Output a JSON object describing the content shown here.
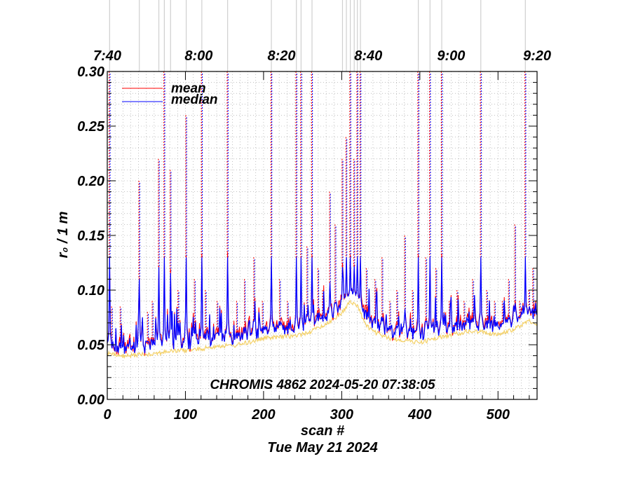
{
  "chart_data": {
    "type": "line",
    "xlabel": "scan #",
    "ylabel": "r₀ / 1 m",
    "date_label": "Tue May 21 2024",
    "annotation": "CHROMIS 4862 2024-05-20 07:38:05",
    "xlim": [
      0,
      550
    ],
    "ylim": [
      0.0,
      0.3
    ],
    "x_ticks": [
      0,
      100,
      200,
      300,
      400,
      500
    ],
    "x_tick_labels": [
      "0",
      "100",
      "200",
      "300",
      "400",
      "500"
    ],
    "y_ticks": [
      0.0,
      0.05,
      0.1,
      0.15,
      0.2,
      0.25,
      0.3
    ],
    "y_tick_labels": [
      "0.00",
      "0.05",
      "0.10",
      "0.15",
      "0.20",
      "0.25",
      "0.30"
    ],
    "time_ticks": [
      {
        "label": "7:40",
        "scan": 0
      },
      {
        "label": "8:00",
        "scan": 117
      },
      {
        "label": "8:20",
        "scan": 223
      },
      {
        "label": "8:40",
        "scan": 334
      },
      {
        "label": "9:00",
        "scan": 440
      },
      {
        "label": "9:20",
        "scan": 550
      }
    ],
    "grid": true,
    "legend_position": "top-left",
    "series": [
      {
        "name": "mean",
        "color": "#ff0000"
      },
      {
        "name": "median",
        "color": "#0000ff"
      }
    ],
    "baseline": [
      [
        0,
        0.048
      ],
      [
        20,
        0.045
      ],
      [
        40,
        0.047
      ],
      [
        60,
        0.048
      ],
      [
        80,
        0.05
      ],
      [
        100,
        0.051
      ],
      [
        120,
        0.052
      ],
      [
        140,
        0.055
      ],
      [
        160,
        0.055
      ],
      [
        180,
        0.058
      ],
      [
        200,
        0.062
      ],
      [
        220,
        0.063
      ],
      [
        240,
        0.064
      ],
      [
        260,
        0.068
      ],
      [
        280,
        0.075
      ],
      [
        300,
        0.085
      ],
      [
        310,
        0.095
      ],
      [
        320,
        0.092
      ],
      [
        330,
        0.075
      ],
      [
        340,
        0.068
      ],
      [
        360,
        0.062
      ],
      [
        380,
        0.06
      ],
      [
        400,
        0.058
      ],
      [
        420,
        0.062
      ],
      [
        440,
        0.065
      ],
      [
        460,
        0.068
      ],
      [
        480,
        0.068
      ],
      [
        500,
        0.065
      ],
      [
        520,
        0.07
      ],
      [
        540,
        0.078
      ],
      [
        550,
        0.075
      ]
    ],
    "peaks": [
      {
        "scan": 3,
        "value": 0.3
      },
      {
        "scan": 6,
        "value": 0.085
      },
      {
        "scan": 17,
        "value": 0.085
      },
      {
        "scan": 41,
        "value": 0.2
      },
      {
        "scan": 52,
        "value": 0.08
      },
      {
        "scan": 58,
        "value": 0.09
      },
      {
        "scan": 66,
        "value": 0.22
      },
      {
        "scan": 73,
        "value": 0.3
      },
      {
        "scan": 81,
        "value": 0.21
      },
      {
        "scan": 91,
        "value": 0.1
      },
      {
        "scan": 101,
        "value": 0.26
      },
      {
        "scan": 112,
        "value": 0.11
      },
      {
        "scan": 121,
        "value": 0.3
      },
      {
        "scan": 126,
        "value": 0.1
      },
      {
        "scan": 141,
        "value": 0.09
      },
      {
        "scan": 154,
        "value": 0.3
      },
      {
        "scan": 166,
        "value": 0.09
      },
      {
        "scan": 176,
        "value": 0.11
      },
      {
        "scan": 188,
        "value": 0.13
      },
      {
        "scan": 199,
        "value": 0.09
      },
      {
        "scan": 210,
        "value": 0.3
      },
      {
        "scan": 221,
        "value": 0.11
      },
      {
        "scan": 231,
        "value": 0.09
      },
      {
        "scan": 242,
        "value": 0.3
      },
      {
        "scan": 248,
        "value": 0.3
      },
      {
        "scan": 256,
        "value": 0.14
      },
      {
        "scan": 262,
        "value": 0.3
      },
      {
        "scan": 270,
        "value": 0.12
      },
      {
        "scan": 276,
        "value": 0.1
      },
      {
        "scan": 285,
        "value": 0.19
      },
      {
        "scan": 292,
        "value": 0.16
      },
      {
        "scan": 301,
        "value": 0.22
      },
      {
        "scan": 306,
        "value": 0.24
      },
      {
        "scan": 311,
        "value": 0.3
      },
      {
        "scan": 316,
        "value": 0.22
      },
      {
        "scan": 320,
        "value": 0.3
      },
      {
        "scan": 324,
        "value": 0.3
      },
      {
        "scan": 332,
        "value": 0.12
      },
      {
        "scan": 343,
        "value": 0.11
      },
      {
        "scan": 352,
        "value": 0.13
      },
      {
        "scan": 362,
        "value": 0.09
      },
      {
        "scan": 371,
        "value": 0.1
      },
      {
        "scan": 381,
        "value": 0.15
      },
      {
        "scan": 391,
        "value": 0.1
      },
      {
        "scan": 398,
        "value": 0.3
      },
      {
        "scan": 408,
        "value": 0.13
      },
      {
        "scan": 413,
        "value": 0.3
      },
      {
        "scan": 421,
        "value": 0.12
      },
      {
        "scan": 428,
        "value": 0.3
      },
      {
        "scan": 438,
        "value": 0.09
      },
      {
        "scan": 448,
        "value": 0.1
      },
      {
        "scan": 457,
        "value": 0.09
      },
      {
        "scan": 468,
        "value": 0.11
      },
      {
        "scan": 478,
        "value": 0.3
      },
      {
        "scan": 486,
        "value": 0.1
      },
      {
        "scan": 496,
        "value": 0.09
      },
      {
        "scan": 506,
        "value": 0.09
      },
      {
        "scan": 514,
        "value": 0.11
      },
      {
        "scan": 522,
        "value": 0.16
      },
      {
        "scan": 528,
        "value": 0.09
      },
      {
        "scan": 535,
        "value": 0.3
      },
      {
        "scan": 540,
        "value": 0.1
      },
      {
        "scan": 545,
        "value": 0.12
      }
    ]
  }
}
